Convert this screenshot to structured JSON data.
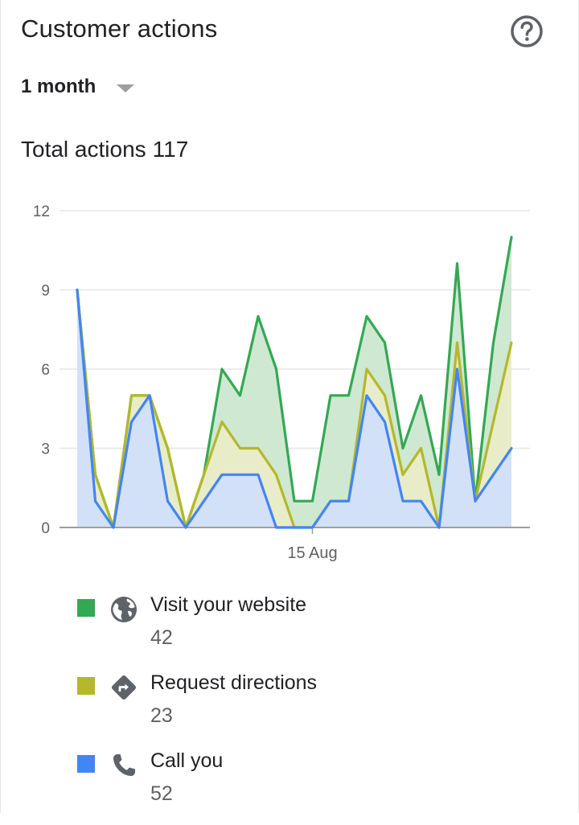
{
  "header": {
    "title": "Customer actions"
  },
  "range": {
    "selected": "1 month"
  },
  "summary": {
    "label": "Total actions",
    "value": "117"
  },
  "colors": {
    "website": "#34a853",
    "directions": "#b4b82a",
    "calls": "#4285f4",
    "website_fill": "#cfe8d2",
    "directions_fill": "#e9ecc8",
    "calls_fill": "#d2e1f8",
    "grid": "#e6e6e6",
    "axis": "#9e9e9e",
    "tick_text": "#616161"
  },
  "chart_data": {
    "type": "area",
    "stacked": true,
    "ylim": [
      0,
      12
    ],
    "yticks": [
      0,
      3,
      6,
      9,
      12
    ],
    "x_tick_labels": [
      {
        "index": 13,
        "label": "15 Aug"
      }
    ],
    "grid": true,
    "series": [
      {
        "name": "Call you",
        "key": "calls",
        "cumulative": [
          9,
          1,
          0,
          4,
          5,
          1,
          0,
          1,
          2,
          2,
          2,
          0,
          0,
          0,
          1,
          1,
          5,
          4,
          1,
          1,
          0,
          6,
          1,
          2,
          3
        ]
      },
      {
        "name": "Request directions",
        "key": "directions",
        "cumulative": [
          9,
          2,
          0,
          5,
          5,
          3,
          0,
          2,
          4,
          3,
          3,
          2,
          0,
          0,
          1,
          1,
          6,
          5,
          2,
          3,
          0,
          7,
          1,
          4,
          7
        ]
      },
      {
        "name": "Visit your website",
        "key": "website",
        "cumulative": [
          9,
          2,
          0,
          5,
          5,
          3,
          0,
          2,
          6,
          5,
          8,
          6,
          1,
          1,
          5,
          5,
          8,
          7,
          3,
          5,
          2,
          10,
          1,
          7,
          11
        ]
      }
    ]
  },
  "legend": {
    "items": [
      {
        "label": "Visit your website",
        "value": "42",
        "icon": "globe-icon"
      },
      {
        "label": "Request directions",
        "value": "23",
        "icon": "directions-icon"
      },
      {
        "label": "Call you",
        "value": "52",
        "icon": "phone-icon"
      }
    ]
  }
}
